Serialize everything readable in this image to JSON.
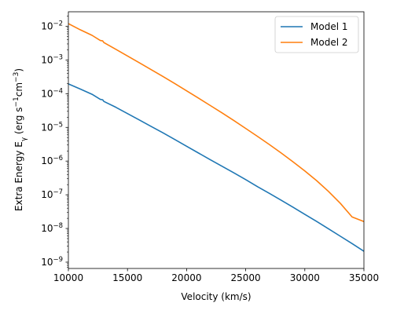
{
  "chart_data": {
    "type": "line",
    "xlabel": "Velocity (km/s)",
    "ylabel": "Extra Energy E",
    "ylabel_subscript": "γ",
    "ylabel_units_open": " (erg s",
    "ylabel_exp1": "−1",
    "ylabel_mid": "cm",
    "ylabel_exp2": "−3",
    "ylabel_close": ")",
    "y_scale": "log",
    "xlim": [
      10000,
      35000
    ],
    "ylim": [
      6.5e-10,
      0.027
    ],
    "x_ticks": [
      10000,
      15000,
      20000,
      25000,
      30000,
      35000
    ],
    "x_tick_labels": [
      "10000",
      "15000",
      "20000",
      "25000",
      "30000",
      "35000"
    ],
    "y_ticks": [
      {
        "base": "10",
        "exp": "−9",
        "value": 1e-09
      },
      {
        "base": "10",
        "exp": "−8",
        "value": 1e-08
      },
      {
        "base": "10",
        "exp": "−7",
        "value": 1e-07
      },
      {
        "base": "10",
        "exp": "−6",
        "value": 1e-06
      },
      {
        "base": "10",
        "exp": "−5",
        "value": 1e-05
      },
      {
        "base": "10",
        "exp": "−4",
        "value": 0.0001
      },
      {
        "base": "10",
        "exp": "−3",
        "value": 0.001
      },
      {
        "base": "10",
        "exp": "−2",
        "value": 0.01
      }
    ],
    "legend_position": "top-right",
    "grid": false,
    "series": [
      {
        "name": "Model 1",
        "color": "#1f77b4",
        "x": [
          10000,
          11000,
          12000,
          12700,
          12900,
          13000,
          14000,
          15000,
          16000,
          17000,
          18000,
          19000,
          20000,
          21000,
          22000,
          23000,
          24000,
          25000,
          26000,
          27000,
          28000,
          29000,
          30000,
          31000,
          32000,
          33000,
          34000,
          35000
        ],
        "y": [
          0.000195,
          0.000138,
          9.6e-05,
          6.8e-05,
          6.6e-05,
          5.9e-05,
          3.98e-05,
          2.57e-05,
          1.66e-05,
          1.07e-05,
          6.9e-06,
          4.37e-06,
          2.75e-06,
          1.74e-06,
          1.1e-06,
          7e-07,
          4.47e-07,
          2.82e-07,
          1.74e-07,
          1.1e-07,
          6.9e-08,
          4.27e-08,
          2.63e-08,
          1.62e-08,
          9.8e-09,
          5.9e-09,
          3.55e-09,
          2.1e-09
        ]
      },
      {
        "name": "Model 2",
        "color": "#ff7f0e",
        "x": [
          10000,
          11000,
          12000,
          12700,
          12900,
          13000,
          14000,
          15000,
          16000,
          17000,
          18000,
          19000,
          20000,
          21000,
          22000,
          23000,
          24000,
          25000,
          26000,
          27000,
          28000,
          29000,
          30000,
          31000,
          32000,
          33000,
          34000,
          35000
        ],
        "y": [
          0.012,
          0.0079,
          0.0054,
          0.0038,
          0.0037,
          0.0033,
          0.00209,
          0.00132,
          0.00083,
          0.00052,
          0.000324,
          0.0002,
          0.000122,
          7.4e-05,
          4.47e-05,
          2.69e-05,
          1.6e-05,
          9.3e-06,
          5.4e-06,
          3.1e-06,
          1.74e-06,
          9.5e-07,
          5.1e-07,
          2.63e-07,
          1.26e-07,
          5.6e-08,
          2.2e-08,
          1.6e-08
        ]
      }
    ]
  }
}
